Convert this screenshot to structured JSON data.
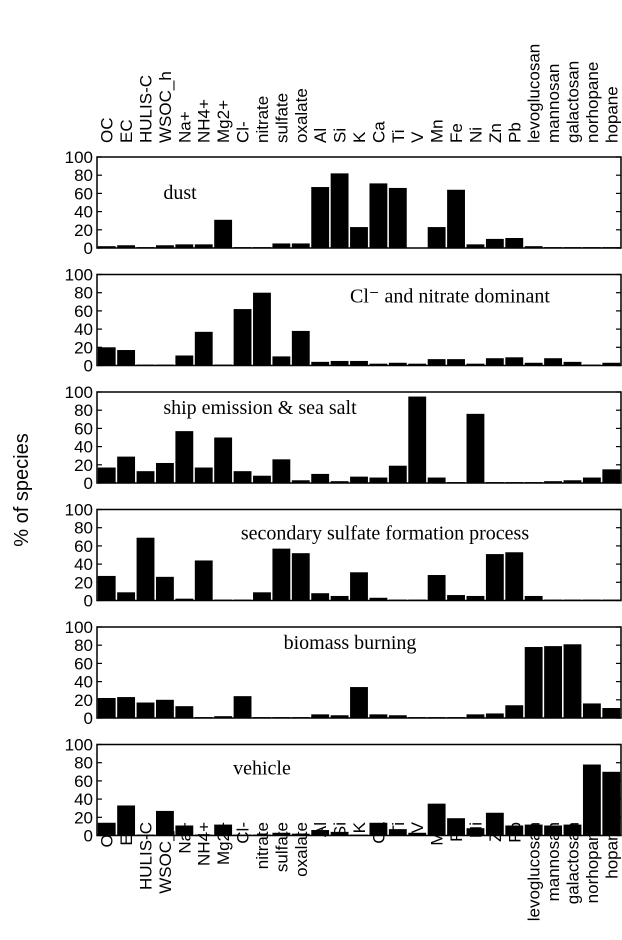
{
  "chart_data": [
    {
      "type": "bar",
      "title": "dust",
      "ylabel": "% of species",
      "categories": [
        "OC",
        "EC",
        "HULIS-C",
        "WSOC_h",
        "Na+",
        "NH4+",
        "Mg2+",
        "Cl-",
        "nitrate",
        "sulfate",
        "oxalate",
        "Al",
        "Si",
        "K",
        "Ca",
        "Ti",
        "V",
        "Mn",
        "Fe",
        "Ni",
        "Zn",
        "Pb",
        "levoglucosan",
        "mannosan",
        "galactosan",
        "norhopane",
        "hopane"
      ],
      "values": [
        2,
        3,
        1,
        3,
        4,
        4,
        31,
        1,
        1,
        5,
        5,
        67,
        82,
        23,
        71,
        66,
        0,
        23,
        64,
        4,
        10,
        11,
        2,
        1,
        1,
        1,
        1
      ],
      "color": "#000000",
      "ylim": [
        0,
        100
      ],
      "yticks": [
        0,
        20,
        40,
        60,
        80,
        100
      ]
    },
    {
      "type": "bar",
      "title": "Cl⁻ and nitrate dominant",
      "values": [
        20,
        17,
        1,
        1,
        11,
        37,
        1,
        62,
        80,
        10,
        38,
        4,
        5,
        5,
        2,
        3,
        2,
        7,
        7,
        2,
        8,
        9,
        3,
        8,
        4,
        1,
        3
      ],
      "color": "#000000",
      "ylim": [
        0,
        100
      ],
      "yticks": [
        0,
        20,
        40,
        60,
        80,
        100
      ]
    },
    {
      "type": "bar",
      "title": "ship emission & sea salt",
      "values": [
        17,
        29,
        13,
        22,
        57,
        17,
        50,
        13,
        8,
        26,
        3,
        10,
        2,
        7,
        6,
        19,
        95,
        6,
        1,
        76,
        1,
        1,
        1,
        2,
        3,
        6,
        15
      ],
      "color": "#000000",
      "ylim": [
        0,
        100
      ],
      "yticks": [
        0,
        20,
        40,
        60,
        80,
        100
      ]
    },
    {
      "type": "bar",
      "title": "secondary sulfate formation process",
      "values": [
        27,
        9,
        69,
        26,
        2,
        44,
        1,
        1,
        9,
        57,
        52,
        8,
        5,
        31,
        3,
        1,
        1,
        28,
        6,
        5,
        51,
        53,
        5,
        1,
        1,
        1,
        1
      ],
      "color": "#000000",
      "ylim": [
        0,
        100
      ],
      "yticks": [
        0,
        20,
        40,
        60,
        80,
        100
      ]
    },
    {
      "type": "bar",
      "title": "biomass burning",
      "values": [
        22,
        23,
        17,
        20,
        13,
        1,
        2,
        24,
        1,
        1,
        1,
        4,
        3,
        34,
        4,
        3,
        1,
        1,
        1,
        4,
        5,
        14,
        78,
        79,
        81,
        16,
        11
      ],
      "color": "#000000",
      "ylim": [
        0,
        100
      ],
      "yticks": [
        0,
        20,
        40,
        60,
        80,
        100
      ]
    },
    {
      "type": "bar",
      "title": "vehicle",
      "values": [
        14,
        33,
        1,
        27,
        11,
        1,
        12,
        1,
        1,
        3,
        2,
        6,
        4,
        1,
        14,
        7,
        3,
        35,
        19,
        8,
        25,
        11,
        12,
        11,
        12,
        78,
        70
      ],
      "color": "#000000",
      "ylim": [
        0,
        100
      ],
      "yticks": [
        0,
        20,
        40,
        60,
        80,
        100
      ]
    }
  ]
}
